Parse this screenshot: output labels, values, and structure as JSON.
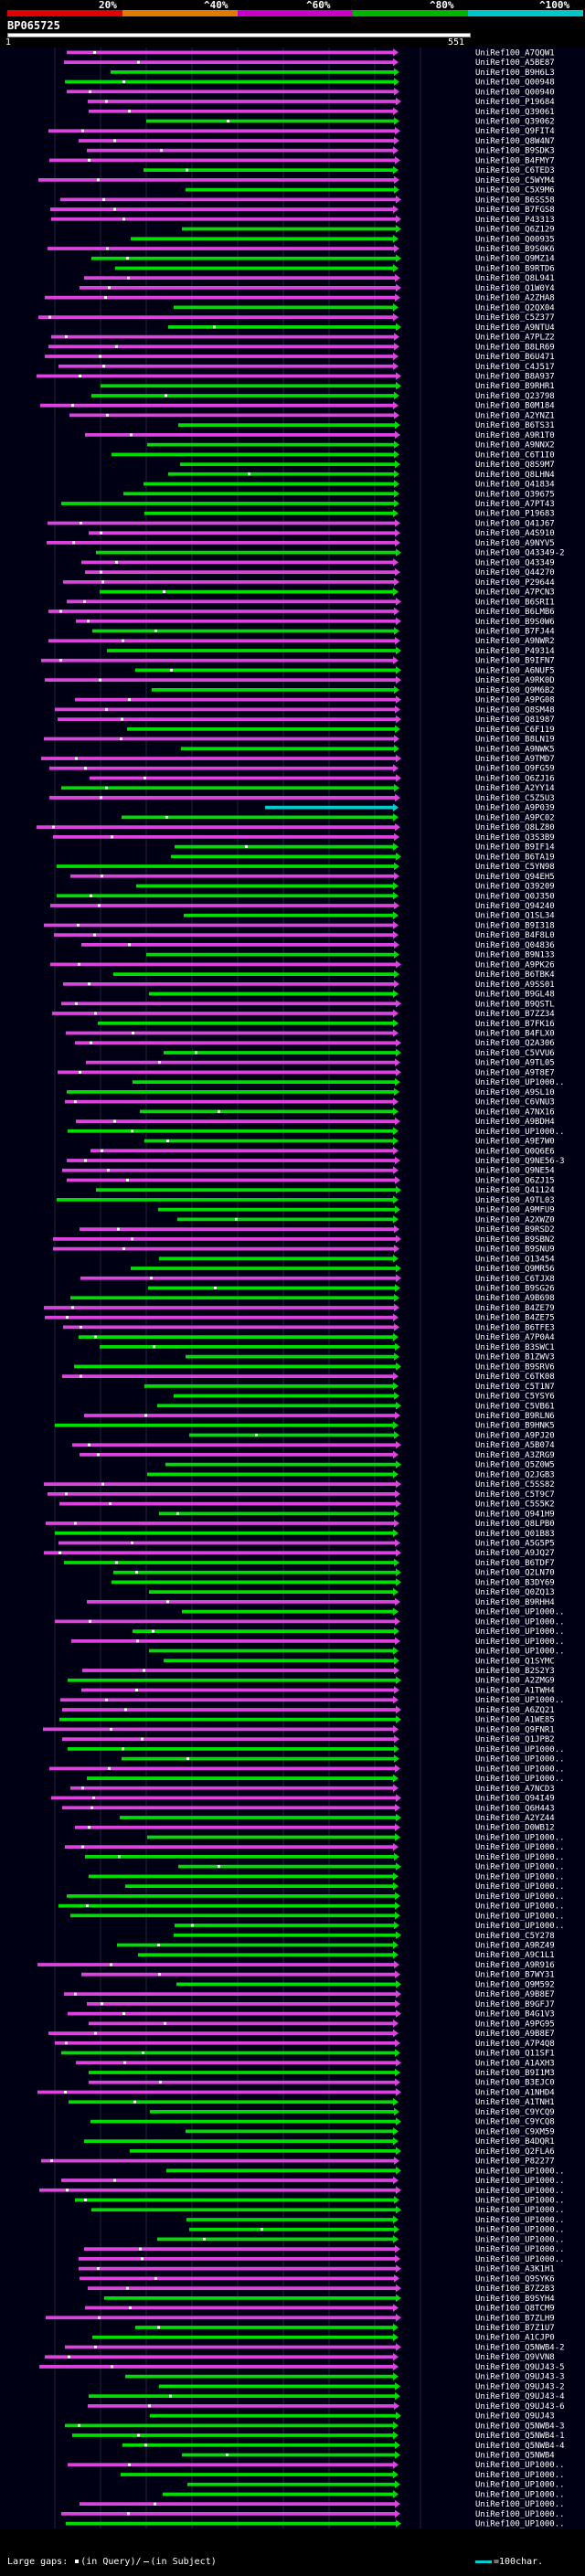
{
  "query": {
    "title": "BP065725",
    "start": "1",
    "end": "551"
  },
  "scale": {
    "labels": [
      "20%",
      "^40%",
      "^60%",
      "^80%",
      "^100%"
    ],
    "colors": [
      "#ff0000",
      "#ff8800",
      "#cc00cc",
      "#00cc00",
      "#00cccc"
    ]
  },
  "legend": {
    "prefix": "Large gaps:",
    "query_gap": "(in Query)/",
    "subject_gap": "(in Subject)",
    "scale_text": "=100char."
  },
  "colors": {
    "green": "#00dd00",
    "magenta": "#dd44dd",
    "cyan": "#00cccc",
    "gap": "#ffffff"
  },
  "hits": [
    "UniRef100_A7QQW1",
    "UniRef100_A5BE87",
    "UniRef100_B9H6L3",
    "UniRef100_Q00948",
    "UniRef100_Q00940",
    "UniRef100_P19684",
    "UniRef100_Q39061",
    "UniRef100_Q39062",
    "UniRef100_Q9FIT4",
    "UniRef100_Q8W4N7",
    "UniRef100_B9SDK3",
    "UniRef100_B4FMY7",
    "UniRef100_C6TED3",
    "UniRef100_C5WYM4",
    "UniRef100_C5X9M6",
    "UniRef100_B6SS58",
    "UniRef100_B7FGS8",
    "UniRef100_P43313",
    "UniRef100_Q6Z129",
    "UniRef100_Q00935",
    "UniRef100_B9S0K6",
    "UniRef100_Q9MZ14",
    "UniRef100_B9RTD6",
    "UniRef100_Q8L941",
    "UniRef100_Q1W0Y4",
    "UniRef100_A2ZHA8",
    "UniRef100_Q2QX04",
    "UniRef100_C5Z377",
    "UniRef100_A9NTU4",
    "UniRef100_A7PLZ2",
    "UniRef100_B8LR69",
    "UniRef100_B6U471",
    "UniRef100_C4J517",
    "UniRef100_B8A937",
    "UniRef100_B9RHR1",
    "UniRef100_Q23798",
    "UniRef100_B0M184",
    "UniRef100_A2YNZ1",
    "UniRef100_B6TS31",
    "UniRef100_A9R1T0",
    "UniRef100_A9NNX2",
    "UniRef100_C6T1I0",
    "UniRef100_Q8S9M7",
    "UniRef100_Q8LHN4",
    "UniRef100_Q41834",
    "UniRef100_Q39675",
    "UniRef100_A7PT43",
    "UniRef100_P19683",
    "UniRef100_Q41J67",
    "UniRef100_A4S910",
    "UniRef100_A9NYV5",
    "UniRef100_Q43349-2",
    "UniRef100_Q43349",
    "UniRef100_Q44270",
    "UniRef100_P29644",
    "UniRef100_A7PCN3",
    "UniRef100_B6SRI1",
    "UniRef100_B6LMB6",
    "UniRef100_B9S0W6",
    "UniRef100_B7FJ44",
    "UniRef100_A9NWR2",
    "UniRef100_P49314",
    "UniRef100_B9IFN7",
    "UniRef100_A6NUF5",
    "UniRef100_A9RK0D",
    "UniRef100_Q9M6B2",
    "UniRef100_A9PG08",
    "UniRef100_Q8SM48",
    "UniRef100_Q81987",
    "UniRef100_C6F119",
    "UniRef100_B8LN19",
    "UniRef100_A9NWK5",
    "UniRef100_A9TMD7",
    "UniRef100_Q9FG59",
    "UniRef100_Q6ZJ16",
    "UniRef100_A2YY14",
    "UniRef100_C5Z5U3",
    "UniRef100_A9P039",
    "UniRef100_A9PC02",
    "UniRef100_Q8LZ80",
    "UniRef100_Q3S3B9",
    "UniRef100_B9IF14",
    "UniRef100_B6TA19",
    "UniRef100_C5YN98",
    "UniRef100_Q94EH5",
    "UniRef100_Q39209",
    "UniRef100_Q0J350",
    "UniRef100_Q94240",
    "UniRef100_Q1SL34",
    "UniRef100_B9I318",
    "UniRef100_B4F8L0",
    "UniRef100_Q04836",
    "UniRef100_B9N133",
    "UniRef100_A9PK26",
    "UniRef100_B6TBK4",
    "UniRef100_A9SS01",
    "UniRef100_B9GL48",
    "UniRef100_B9QSTL",
    "UniRef100_B7ZZ34",
    "UniRef100_B7FK16",
    "UniRef100_B4FLX0",
    "UniRef100_Q2A306",
    "UniRef100_C5VVU6",
    "UniRef100_A9TL05",
    "UniRef100_A9T8E7",
    "UniRef100_UP1000..",
    "UniRef100_A9SL10",
    "UniRef100_C6VNU3",
    "UniRef100_A7NX16",
    "UniRef100_A9BDH4",
    "UniRef100_UP1000..",
    "UniRef100_A9E7W0",
    "UniRef100_Q0Q6E6",
    "UniRef100_Q9NE56-3",
    "UniRef100_Q9NE54",
    "UniRef100_Q6ZJ15",
    "UniRef100_Q41124",
    "UniRef100_A9TL03",
    "UniRef100_A9MFU9",
    "UniRef100_A2XWZ0",
    "UniRef100_B9RSD2",
    "UniRef100_B9SBN2",
    "UniRef100_B9SNU9",
    "UniRef100_Q13454",
    "UniRef100_Q9MR56",
    "UniRef100_C6TJX8",
    "UniRef100_B9SG26",
    "UniRef100_A9B698",
    "UniRef100_B4ZE79",
    "UniRef100_B4ZE75",
    "UniRef100_B6TFE3",
    "UniRef100_A7P0A4",
    "UniRef100_B3SWC1",
    "UniRef100_B1ZWV3",
    "UniRef100_B9SRV6",
    "UniRef100_C6TK08",
    "UniRef100_C5T1N7",
    "UniRef100_C5YSY6",
    "UniRef100_C5VB61",
    "UniRef100_B9RLN6",
    "UniRef100_B9HNK5",
    "UniRef100_A9PJ20",
    "UniRef100_A5B074",
    "UniRef100_A3ZRG9",
    "UniRef100_Q5Z0W5",
    "UniRef100_Q2JGB3",
    "UniRef100_C5SS82",
    "UniRef100_C5T9C7",
    "UniRef100_C5S5K2",
    "UniRef100_Q941H9",
    "UniRef100_Q8LPB0",
    "UniRef100_Q01B83",
    "UniRef100_A5G5P5",
    "UniRef100_A9JQ27",
    "UniRef100_B6TDF7",
    "UniRef100_Q2LN70",
    "UniRef100_B3DY69",
    "UniRef100_Q0ZQ13",
    "UniRef100_B9RHH4",
    "UniRef100_UP1000..",
    "UniRef100_UP1000..",
    "UniRef100_UP1000..",
    "UniRef100_UP1000..",
    "UniRef100_UP1000..",
    "UniRef100_Q1SYMC",
    "UniRef100_B2S2Y3",
    "UniRef100_A2ZMG9",
    "UniRef100_A1TWH4",
    "UniRef100_UP1000..",
    "UniRef100_A6ZQ21",
    "UniRef100_A1WE85",
    "UniRef100_Q9FNR1",
    "UniRef100_Q1JPB2",
    "UniRef100_UP1000..",
    "UniRef100_UP1000..",
    "UniRef100_UP1000..",
    "UniRef100_UP1000..",
    "UniRef100_A7NCD3",
    "UniRef100_Q94I49",
    "UniRef100_Q6H443",
    "UniRef100_A2YZ44",
    "UniRef100_D0WB12",
    "UniRef100_UP1000..",
    "UniRef100_UP1000..",
    "UniRef100_UP1000..",
    "UniRef100_UP1000..",
    "UniRef100_UP1000..",
    "UniRef100_UP1000..",
    "UniRef100_UP1000..",
    "UniRef100_UP1000..",
    "UniRef100_UP1000..",
    "UniRef100_UP1000..",
    "UniRef100_C5Y278",
    "UniRef100_A9RZ49",
    "UniRef100_A9C1L1",
    "UniRef100_A9R916",
    "UniRef100_B7WY31",
    "UniRef100_Q9M592",
    "UniRef100_A9B8E7",
    "UniRef100_B9GFJ7",
    "UniRef100_B4G1V3",
    "UniRef100_A9PG95",
    "UniRef100_A9B8E7",
    "UniRef100_A7P4Q8",
    "UniRef100_Q11SF1",
    "UniRef100_A1AXH3",
    "UniRef100_B9I1M3",
    "UniRef100_B3EJC0",
    "UniRef100_A1NHD4",
    "UniRef100_A1TNH1",
    "UniRef100_C9YCQ9",
    "UniRef100_C9YCQ8",
    "UniRef100_C9XM59",
    "UniRef100_B4DQR1",
    "UniRef100_Q2FLA6",
    "UniRef100_P82277",
    "UniRef100_UP1000..",
    "UniRef100_UP1000..",
    "UniRef100_UP1000..",
    "UniRef100_UP1000..",
    "UniRef100_UP1000..",
    "UniRef100_UP1000..",
    "UniRef100_UP1000..",
    "UniRef100_UP1000..",
    "UniRef100_UP1000..",
    "UniRef100_UP1000..",
    "UniRef100_A3K1H1",
    "UniRef100_Q9SYK6",
    "UniRef100_B7Z2B3",
    "UniRef100_B9SYH4",
    "UniRef100_Q8TCM9",
    "UniRef100_B7ZLH9",
    "UniRef100_B7Z1U7",
    "UniRef100_A1CJP0",
    "UniRef100_Q5NWB4-2",
    "UniRef100_Q9VVN8",
    "UniRef100_Q9UJ43-5",
    "UniRef100_Q9UJ43-3",
    "UniRef100_Q9UJ43-2",
    "UniRef100_Q9UJ43-4",
    "UniRef100_Q9UJ43-6",
    "UniRef100_Q9UJ43",
    "UniRef100_Q5NWB4-3",
    "UniRef100_Q5NWB4-1",
    "UniRef100_Q5NWB4-4",
    "UniRef100_Q5NWB4",
    "UniRef100_UP1000..",
    "UniRef100_UP1000..",
    "UniRef100_UP1000..",
    "UniRef100_UP1000..",
    "UniRef100_UP1000..",
    "UniRef100_UP1000..",
    "UniRef100_UP1000.."
  ]
}
